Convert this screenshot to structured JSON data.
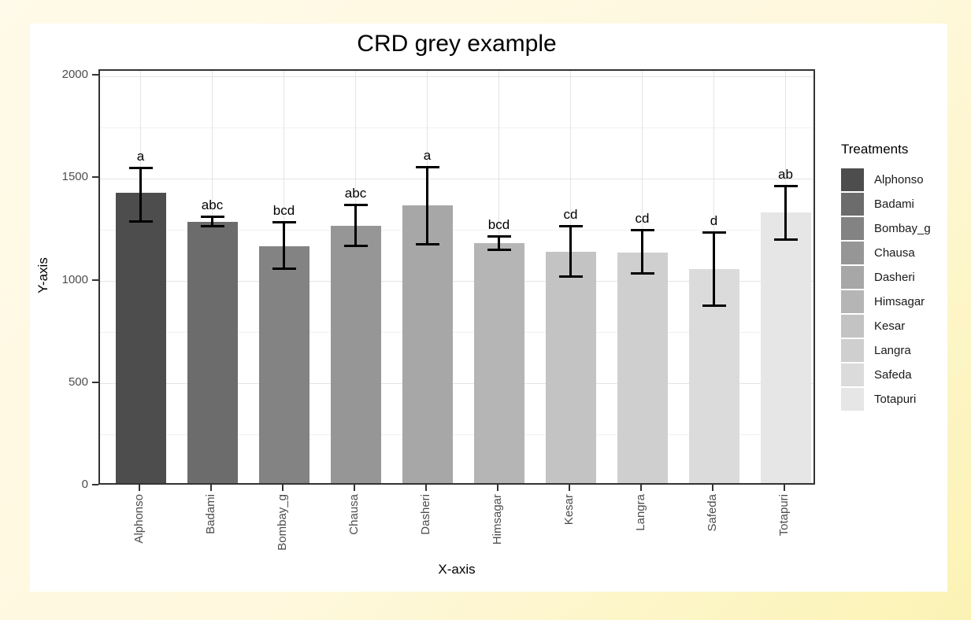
{
  "window": {
    "background_top_left": "#FFFAE9",
    "background_bottom_right": "#FBF3B4",
    "card_background": "#FFFFFF"
  },
  "chart_data": {
    "type": "bar",
    "title": "CRD grey example",
    "xlabel": "X-axis",
    "ylabel": "Y-axis",
    "ylim": [
      0,
      2030
    ],
    "yticks": [
      0,
      500,
      1000,
      1500,
      2000
    ],
    "yticks_minor": [
      250,
      750,
      1250,
      1750
    ],
    "grid": "on",
    "categories": [
      "Alphonso",
      "Badami",
      "Bombay_g",
      "Chausa",
      "Dasheri",
      "Himsagar",
      "Kesar",
      "Langra",
      "Safeda",
      "Totapuri"
    ],
    "values": [
      1430,
      1290,
      1170,
      1270,
      1370,
      1185,
      1145,
      1140,
      1060,
      1335
    ],
    "error_low": [
      1290,
      1265,
      1060,
      1170,
      1180,
      1150,
      1020,
      1035,
      880,
      1200
    ],
    "error_high": [
      1555,
      1315,
      1290,
      1375,
      1560,
      1220,
      1270,
      1250,
      1240,
      1465
    ],
    "sig_letters": [
      "a",
      "abc",
      "bcd",
      "abc",
      "a",
      "bcd",
      "cd",
      "cd",
      "d",
      "ab"
    ],
    "bar_colors": [
      "#4D4D4D",
      "#6C6C6C",
      "#838383",
      "#969696",
      "#A7A7A7",
      "#B5B5B5",
      "#C3C3C3",
      "#CFCFCF",
      "#DBDBDB",
      "#E6E6E6"
    ],
    "error_bar_color": "#000000",
    "axis_text_color": "#4D4D4D",
    "panel_border_color": "#333333",
    "grid_major_color": "#E4E4E4",
    "grid_minor_color": "#F1F1F1",
    "legend": {
      "title": "Treatments",
      "position": "right",
      "items": [
        "Alphonso",
        "Badami",
        "Bombay_g",
        "Chausa",
        "Dasheri",
        "Himsagar",
        "Kesar",
        "Langra",
        "Safeda",
        "Totapuri"
      ]
    }
  }
}
